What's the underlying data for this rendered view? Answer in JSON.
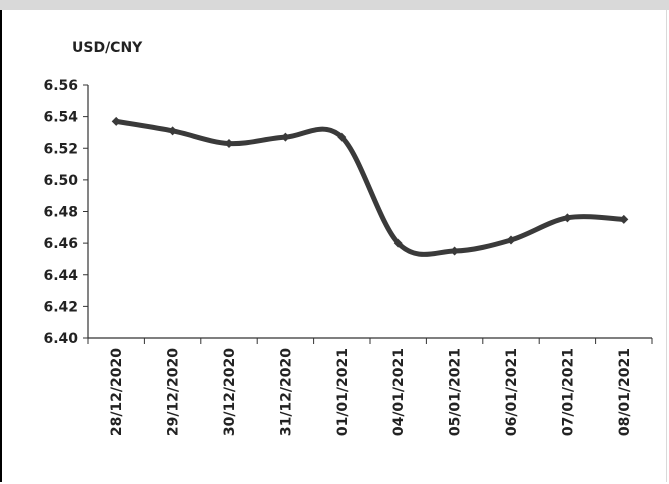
{
  "chart_data": {
    "type": "line",
    "title": "",
    "ylabel": "USD/CNY",
    "xlabel": "",
    "categories": [
      "28/12/2020",
      "29/12/2020",
      "30/12/2020",
      "31/12/2020",
      "01/01/2021",
      "04/01/2021",
      "05/01/2021",
      "06/01/2021",
      "07/01/2021",
      "08/01/2021"
    ],
    "series": [
      {
        "values": [
          6.537,
          6.531,
          6.523,
          6.527,
          6.527,
          6.46,
          6.455,
          6.462,
          6.476,
          6.475
        ]
      }
    ],
    "ylim": [
      6.4,
      6.56
    ],
    "yticks": [
      "6.56",
      "6.54",
      "6.52",
      "6.50",
      "6.48",
      "6.46",
      "6.44",
      "6.42",
      "6.40"
    ],
    "grid": false,
    "line_color": "#3a3a3a"
  }
}
